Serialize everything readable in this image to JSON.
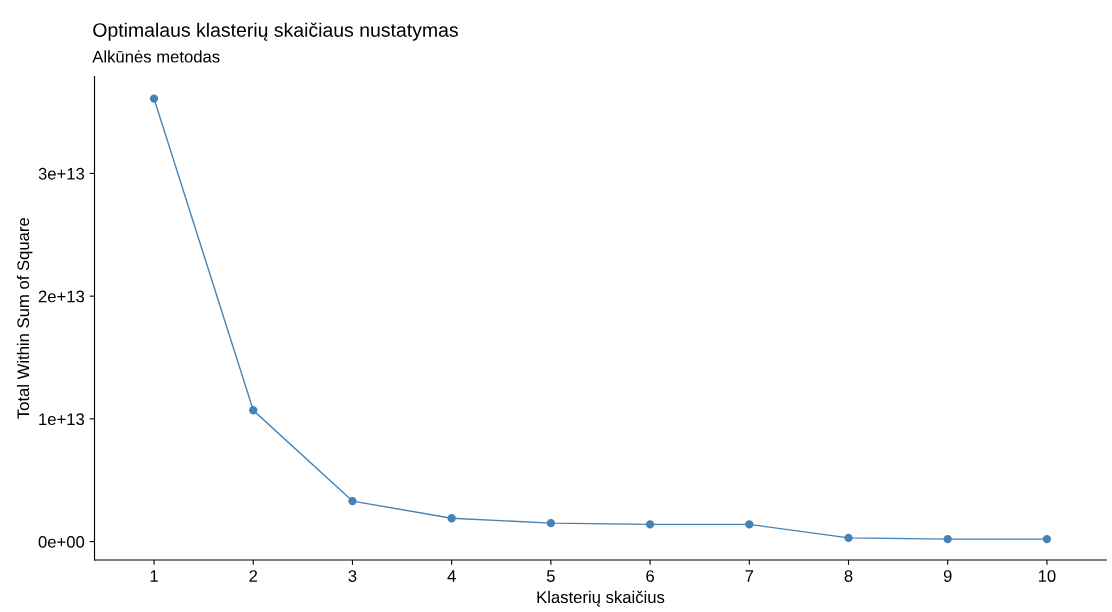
{
  "chart_data": {
    "type": "line",
    "title": "Optimalaus klasterių skaičiaus nustatymas",
    "subtitle": "Alkūnės metodas",
    "xlabel": "Klasterių skaičius",
    "ylabel": "Total Within Sum of Square",
    "categories": [
      "1",
      "2",
      "3",
      "4",
      "5",
      "6",
      "7",
      "8",
      "9",
      "10"
    ],
    "series": [
      {
        "color": "#4682b4",
        "values": [
          36100000000000.0,
          10700000000000.0,
          3300000000000.0,
          1900000000000.0,
          1500000000000.0,
          1400000000000.0,
          1400000000000.0,
          300000000000.0,
          200000000000.0,
          200000000000.0
        ]
      }
    ],
    "ylim": [
      -1500000000000.0,
      37900000000000.0
    ],
    "yticks": [
      {
        "value": 0,
        "label": "0e+00"
      },
      {
        "value": 10000000000000.0,
        "label": "1e+13"
      },
      {
        "value": 20000000000000.0,
        "label": "2e+13"
      },
      {
        "value": 30000000000000.0,
        "label": "3e+13"
      }
    ],
    "marker": "circle",
    "line_style": "solid",
    "grid": false
  }
}
